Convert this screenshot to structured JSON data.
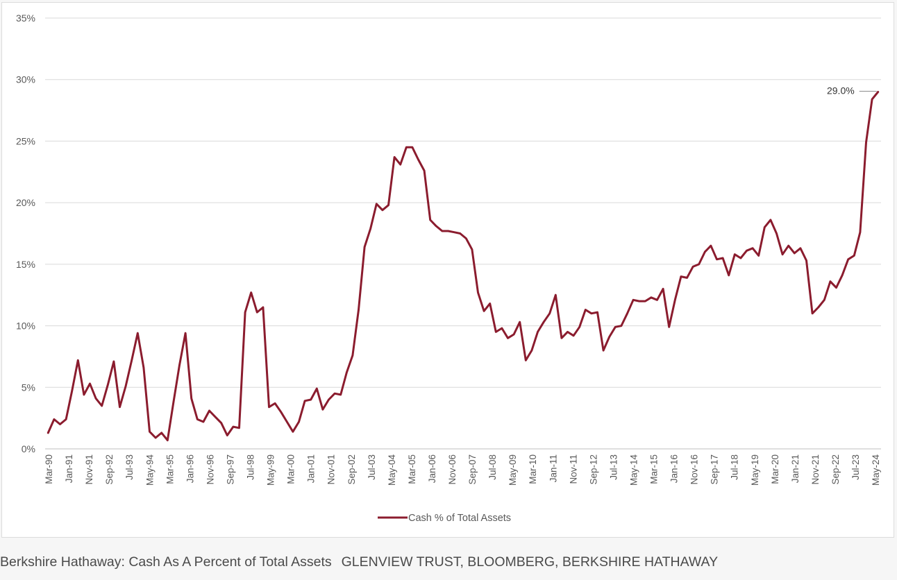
{
  "caption": {
    "title": "Berkshire Hathaway: Cash As A Percent of Total Assets",
    "source": "GLENVIEW TRUST, BLOOMBERG, BERKSHIRE HATHAWAY"
  },
  "colors": {
    "line": "#8b1c2e",
    "grid": "#d9d9d9",
    "axis": "#bfbfbf"
  },
  "chart_data": {
    "type": "line",
    "title": "",
    "xlabel": "",
    "ylabel": "",
    "ylim": [
      0,
      35
    ],
    "y_ticks": [
      "0%",
      "5%",
      "10%",
      "15%",
      "20%",
      "25%",
      "30%",
      "35%"
    ],
    "x_tick_labels": [
      "Mar-90",
      "Jan-91",
      "Nov-91",
      "Sep-92",
      "Jul-93",
      "May-94",
      "Mar-95",
      "Jan-96",
      "Nov-96",
      "Sep-97",
      "Jul-98",
      "May-99",
      "Mar-00",
      "Jan-01",
      "Nov-01",
      "Sep-02",
      "Jul-03",
      "May-04",
      "Mar-05",
      "Jan-06",
      "Nov-06",
      "Sep-07",
      "Jul-08",
      "May-09",
      "Mar-10",
      "Jan-11",
      "Nov-11",
      "Sep-12",
      "Jul-13",
      "May-14",
      "Mar-15",
      "Jan-16",
      "Nov-16",
      "Sep-17",
      "Jul-18",
      "May-19",
      "Mar-20",
      "Jan-21",
      "Nov-21",
      "Sep-22",
      "Jul-23",
      "May-24"
    ],
    "grid": true,
    "legend_position": "bottom-center",
    "annotation": {
      "label": "29.0%",
      "value": 29.0
    },
    "series": [
      {
        "name": "Cash % of Total Assets",
        "values": [
          1.3,
          2.4,
          2.0,
          2.4,
          4.7,
          7.2,
          4.4,
          5.3,
          4.1,
          3.5,
          5.2,
          7.1,
          3.4,
          5.1,
          7.2,
          9.4,
          6.6,
          1.4,
          0.9,
          1.3,
          0.7,
          3.8,
          6.8,
          9.4,
          4.1,
          2.4,
          2.2,
          3.1,
          2.6,
          2.1,
          1.1,
          1.8,
          1.7,
          11.1,
          12.7,
          11.1,
          11.5,
          3.4,
          3.7,
          3.0,
          2.2,
          1.4,
          2.2,
          3.9,
          4.0,
          4.9,
          3.2,
          4.0,
          4.5,
          4.4,
          6.2,
          7.6,
          11.3,
          16.4,
          17.9,
          19.9,
          19.4,
          19.8,
          23.7,
          23.1,
          24.5,
          24.5,
          23.5,
          22.6,
          18.6,
          18.1,
          17.7,
          17.7,
          17.6,
          17.5,
          17.1,
          16.2,
          12.7,
          11.2,
          11.8,
          9.5,
          9.8,
          9.0,
          9.3,
          10.3,
          7.2,
          8.0,
          9.5,
          10.3,
          11.0,
          12.5,
          9.0,
          9.5,
          9.2,
          9.9,
          11.3,
          11.0,
          11.1,
          8.0,
          9.1,
          9.9,
          10.0,
          11.0,
          12.1,
          12.0,
          12.0,
          12.3,
          12.1,
          13.0,
          9.9,
          12.1,
          14.0,
          13.9,
          14.8,
          15.0,
          16.0,
          16.5,
          15.4,
          15.5,
          14.1,
          15.8,
          15.5,
          16.1,
          16.3,
          15.7,
          18.0,
          18.6,
          17.5,
          15.8,
          16.5,
          15.9,
          16.3,
          15.3,
          11.0,
          11.5,
          12.1,
          13.6,
          13.1,
          14.1,
          15.4,
          15.7,
          17.6,
          24.9,
          28.4,
          29.0
        ]
      }
    ]
  }
}
